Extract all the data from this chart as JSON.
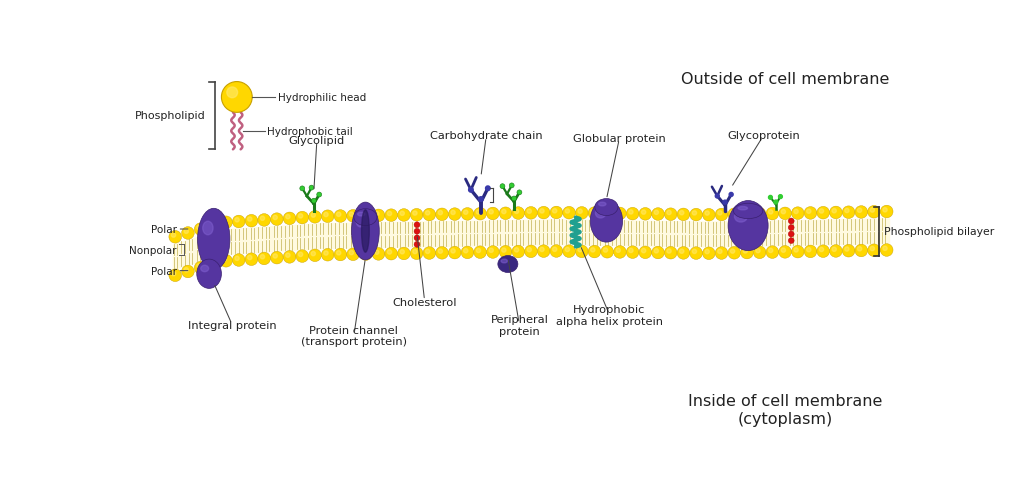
{
  "bg_color": "#ffffff",
  "title_outside": "Outside of cell membrane",
  "title_inside": "Inside of cell membrane\n(cytoplasm)",
  "phospholipid_label": "Phospholipid",
  "hydrophilic_label": "Hydrophilic head",
  "hydrophobic_label": "Hydrophobic tail",
  "polar_label": "Polar",
  "nonpolar_label": "Nonpolar",
  "polar_label2": "Polar",
  "glycolipid_label": "Glycolipid",
  "carbohydrate_label": "Carbohydrate chain",
  "globular_label": "Globular protein",
  "glycoprotein_label": "Glycoprotein",
  "integral_label": "Integral protein",
  "channel_label": "Protein channel\n(transport protein)",
  "cholesterol_label": "Cholesterol",
  "peripheral_label": "Peripheral\nprotein",
  "helix_label": "Hydrophobic\nalpha helix protein",
  "bilayer_label": "Phospholipid bilayer",
  "yellow": "#FFD700",
  "purple": "#5535A0",
  "green": "#228B22",
  "green_bright": "#32CD32",
  "red_chol": "#CC2222",
  "pink": "#C06080",
  "teal": "#20B2AA",
  "navy": "#2A2A70",
  "cream": "#FFFAE0",
  "label_color": "#222222"
}
